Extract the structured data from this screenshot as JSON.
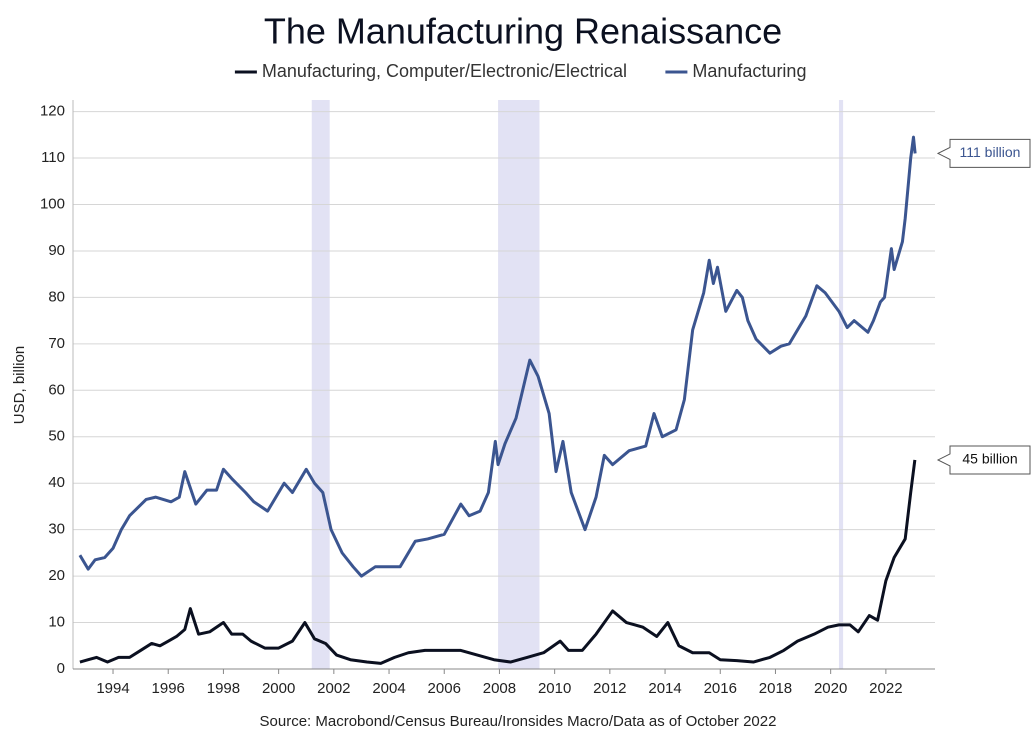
{
  "chart_data": {
    "type": "line",
    "title": "The Manufacturing Renaissance",
    "y_label": "USD, billion",
    "source": "Source: Macrobond/Census Bureau/Ironsides Macro/Data as of October 2022",
    "xlim": [
      1992.55,
      2023.78
    ],
    "ylim": [
      0,
      122.5
    ],
    "xticks": [
      1994,
      1996,
      1998,
      2000,
      2002,
      2004,
      2006,
      2008,
      2010,
      2012,
      2014,
      2016,
      2018,
      2020,
      2022
    ],
    "yticks": [
      0,
      10,
      20,
      30,
      40,
      50,
      60,
      70,
      80,
      90,
      100,
      110,
      120
    ],
    "grid": true,
    "legend": "top",
    "shaded_periods": [
      [
        2001.2,
        2001.85
      ],
      [
        2007.95,
        2009.45
      ],
      [
        2020.3,
        2020.45
      ]
    ],
    "shade_color": "#e2e2f4",
    "series": [
      {
        "name": "Manufacturing, Computer/Electronic/Electrical",
        "color": "#0b1020",
        "x": [
          1992.8,
          1993.1,
          1993.4,
          1993.8,
          1994.2,
          1994.6,
          1995.0,
          1995.4,
          1995.7,
          1996.0,
          1996.3,
          1996.6,
          1996.8,
          1997.1,
          1997.5,
          1998.0,
          1998.3,
          1998.7,
          1999.0,
          1999.5,
          2000.0,
          2000.5,
          2000.95,
          2001.3,
          2001.7,
          2002.1,
          2002.6,
          2003.2,
          2003.7,
          2004.2,
          2004.7,
          2005.3,
          2006.0,
          2006.6,
          2007.2,
          2007.8,
          2008.4,
          2009.0,
          2009.6,
          2010.2,
          2010.5,
          2011.0,
          2011.5,
          2012.1,
          2012.6,
          2013.2,
          2013.7,
          2014.1,
          2014.5,
          2015.0,
          2015.6,
          2016.0,
          2016.6,
          2017.2,
          2017.8,
          2018.3,
          2018.8,
          2019.4,
          2019.9,
          2020.3,
          2020.7,
          2021.0,
          2021.4,
          2021.7,
          2022.0,
          2022.3,
          2022.7,
          2022.9,
          2023.05
        ],
        "values": [
          1.5,
          2.0,
          2.5,
          1.5,
          2.5,
          2.5,
          4,
          5.5,
          5,
          6,
          7,
          8.5,
          13,
          7.5,
          8,
          10,
          7.5,
          7.5,
          6,
          4.5,
          4.5,
          6,
          10,
          6.5,
          5.5,
          3,
          2,
          1.5,
          1.2,
          2.5,
          3.5,
          4,
          4,
          4,
          3,
          2,
          1.5,
          2.5,
          3.5,
          6,
          4,
          4,
          7.5,
          12.5,
          10,
          9,
          7,
          10,
          5,
          3.5,
          3.5,
          2,
          1.8,
          1.5,
          2.5,
          4,
          6,
          7.5,
          9,
          9.5,
          9.5,
          8,
          11.5,
          10.5,
          19,
          24,
          28,
          38,
          45
        ]
      },
      {
        "name": "Manufacturing",
        "color": "#3b5590",
        "x": [
          1992.8,
          1993.1,
          1993.35,
          1993.7,
          1994.0,
          1994.3,
          1994.6,
          1995.2,
          1995.55,
          1996.1,
          1996.4,
          1996.6,
          1997.0,
          1997.4,
          1997.75,
          1998.0,
          1998.3,
          1998.8,
          1999.1,
          1999.6,
          2000.2,
          2000.5,
          2000.8,
          2001.0,
          2001.3,
          2001.6,
          2001.9,
          2002.3,
          2002.7,
          2003.0,
          2003.5,
          2003.9,
          2004.4,
          2004.95,
          2005.4,
          2006.0,
          2006.6,
          2006.9,
          2007.3,
          2007.6,
          2007.85,
          2007.95,
          2008.2,
          2008.6,
          2009.1,
          2009.4,
          2009.8,
          2010.05,
          2010.3,
          2010.6,
          2011.1,
          2011.5,
          2011.8,
          2012.1,
          2012.7,
          2013.3,
          2013.6,
          2013.9,
          2014.4,
          2014.7,
          2015.0,
          2015.4,
          2015.6,
          2015.75,
          2015.9,
          2016.2,
          2016.6,
          2016.8,
          2017.0,
          2017.3,
          2017.8,
          2018.2,
          2018.5,
          2018.9,
          2019.1,
          2019.5,
          2019.8,
          2020.3,
          2020.6,
          2020.85,
          2021.35,
          2021.55,
          2021.8,
          2021.95,
          2022.2,
          2022.3,
          2022.6,
          2022.7,
          2022.9,
          2023.0,
          2023.06
        ],
        "values": [
          24.5,
          21.5,
          23.5,
          24,
          26,
          30,
          33,
          36.5,
          37,
          36,
          37,
          42.5,
          35.5,
          38.5,
          38.5,
          43,
          41,
          38,
          36,
          34,
          40,
          38,
          41,
          43,
          40,
          38,
          30,
          25,
          22,
          20,
          22,
          22,
          22,
          27.5,
          28,
          29,
          35.5,
          33,
          34,
          38,
          49,
          44,
          48.5,
          54,
          66.5,
          63,
          55,
          42.5,
          49,
          38,
          30,
          37,
          46,
          44,
          47,
          48,
          55,
          50,
          51.5,
          58,
          73,
          81,
          88,
          83,
          86.5,
          77,
          81.5,
          80,
          75,
          71,
          68,
          69.5,
          70,
          74,
          76,
          82.5,
          81,
          77,
          73.5,
          75,
          72.5,
          75,
          79,
          80,
          90.5,
          86,
          92,
          97,
          110,
          114.5,
          111
        ]
      }
    ],
    "annotations": [
      {
        "text": "111 billion",
        "series": 1
      },
      {
        "text": "45 billion",
        "series": 0
      }
    ]
  }
}
